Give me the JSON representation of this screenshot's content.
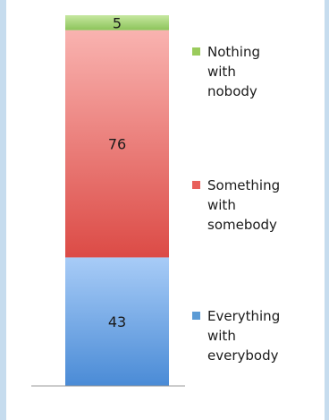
{
  "chart_data": {
    "type": "bar",
    "stacked": true,
    "grid": false,
    "legend_position": "right",
    "categories": [
      ""
    ],
    "series": [
      {
        "name": "Everything with everybody",
        "values": [
          43
        ],
        "color": "#5d9be0",
        "label": "43"
      },
      {
        "name": "Something with somebody",
        "values": [
          76
        ],
        "color": "#ee6b66",
        "label": "76"
      },
      {
        "name": "Nothing with nobody",
        "values": [
          5
        ],
        "color": "#a7d27a",
        "label": "5"
      }
    ],
    "legend": [
      {
        "lines": [
          "Nothing",
          "with",
          "nobody"
        ],
        "color": "#9acb5c"
      },
      {
        "lines": [
          "Something",
          "with",
          "somebody"
        ],
        "color": "#e8605b"
      },
      {
        "lines": [
          "Everything",
          "with",
          "everybody"
        ],
        "color": "#5b9bd5"
      }
    ],
    "ylim": [
      0,
      124
    ]
  }
}
